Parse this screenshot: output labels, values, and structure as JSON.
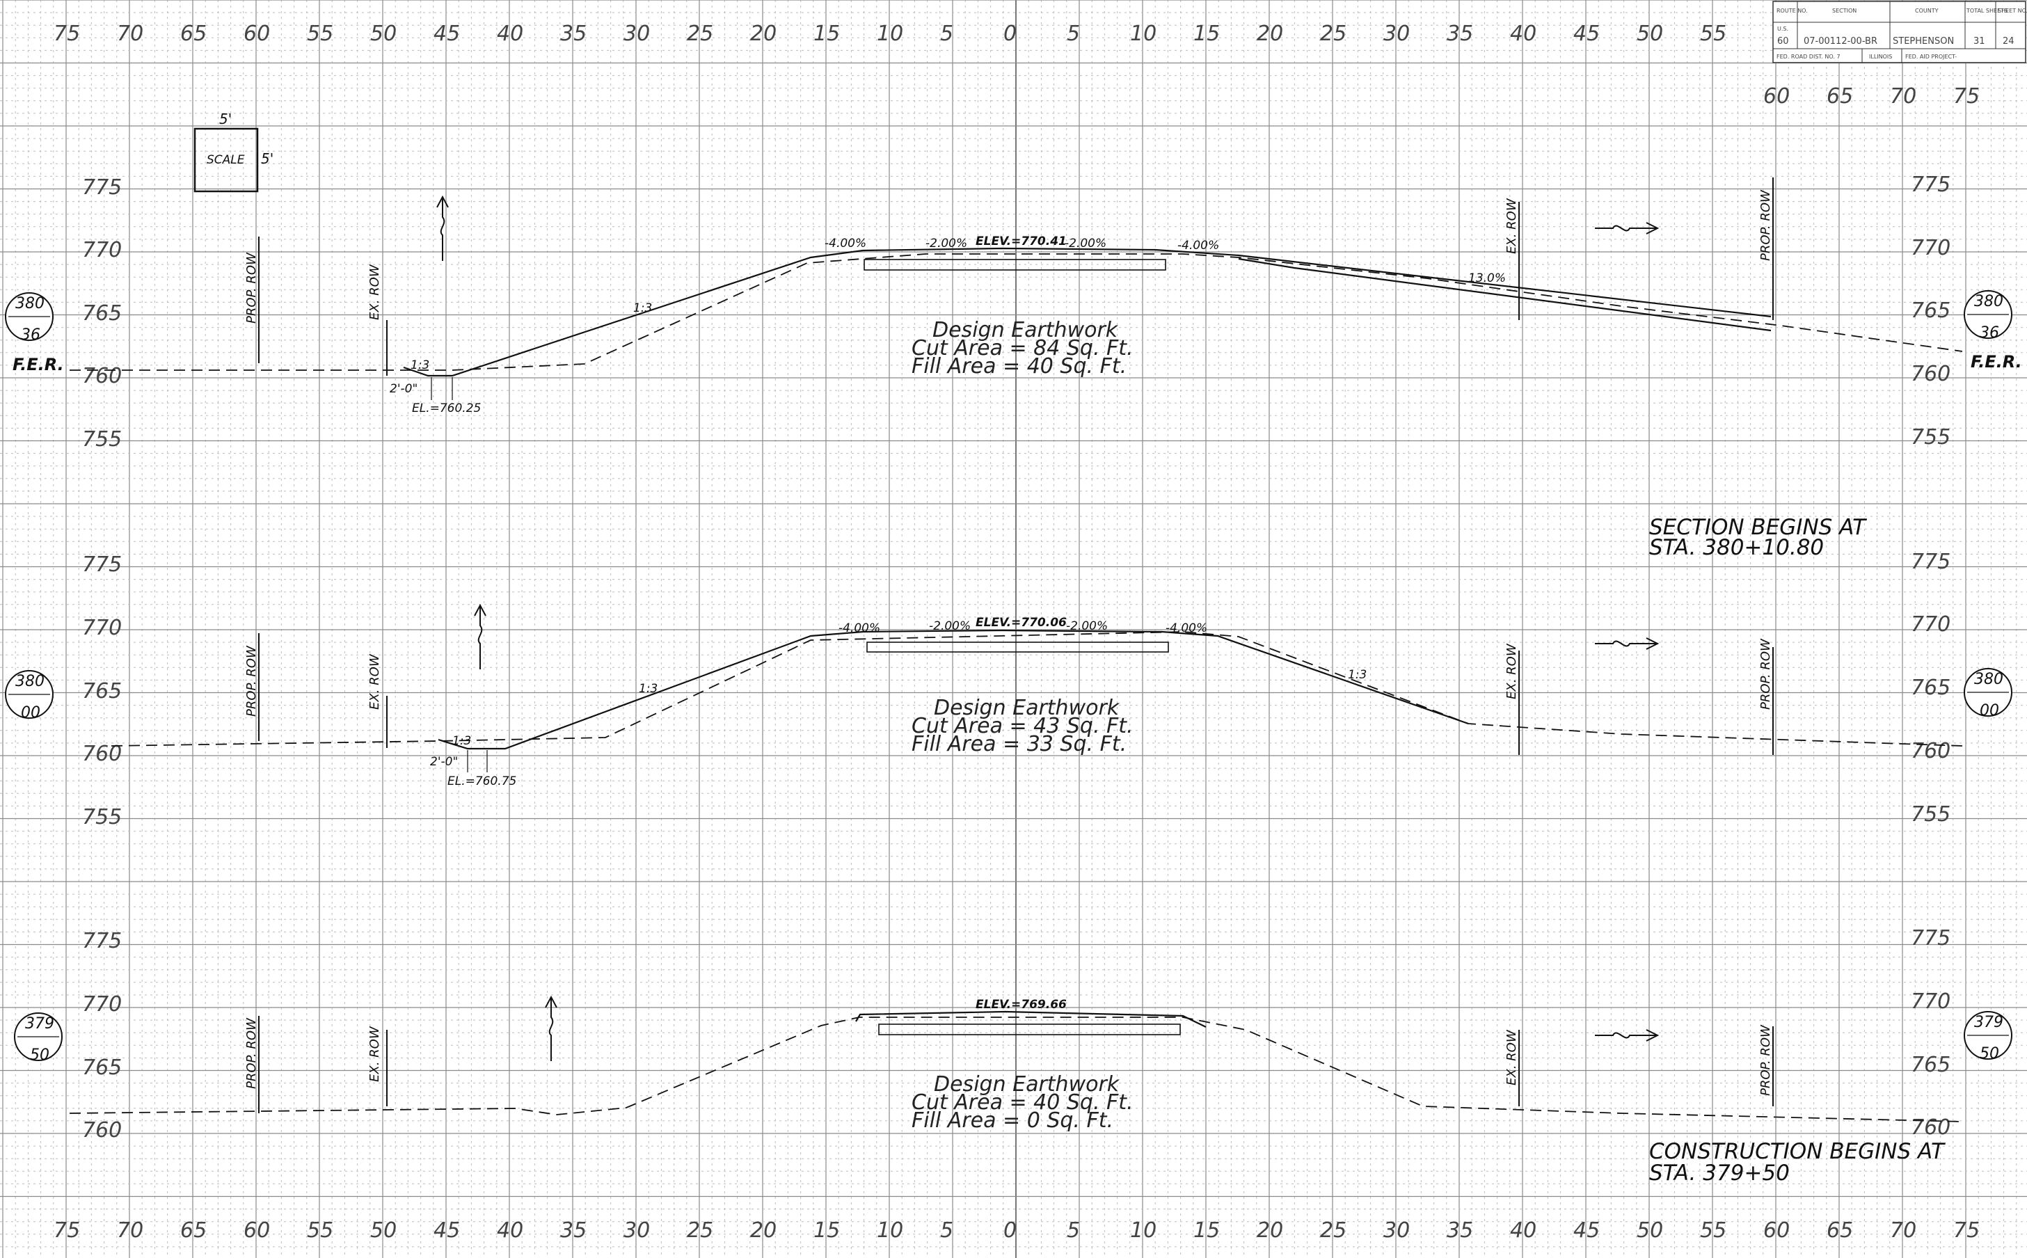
{
  "title_block": {
    "headers": [
      "ROUTE NO.",
      "SECTION",
      "COUNTY",
      "TOTAL SHEETS",
      "SHEET NO."
    ],
    "route_prefix": "U.S.",
    "route": "60",
    "section": "07-00112-00-BR",
    "county": "STEPHENSON",
    "total_sheets": "31",
    "sheet_no": "24",
    "fed_road_dist": "FED. ROAD DIST. NO. 7",
    "state": "ILLINOIS",
    "fed_aid_project": "FED. AID PROJECT-"
  },
  "offset_labels_top": [
    "75",
    "70",
    "65",
    "60",
    "55",
    "50",
    "45",
    "40",
    "35",
    "30",
    "25",
    "20",
    "15",
    "10",
    "5",
    "0",
    "5",
    "10",
    "15",
    "20",
    "25",
    "30",
    "35",
    "40",
    "45",
    "50",
    "55"
  ],
  "offset_labels_top_right": [
    "60",
    "65",
    "70",
    "75"
  ],
  "offset_labels_bottom": [
    "75",
    "70",
    "65",
    "60",
    "55",
    "50",
    "45",
    "40",
    "35",
    "30",
    "25",
    "20",
    "15",
    "10",
    "5",
    "0",
    "5",
    "10",
    "15",
    "20",
    "25",
    "30",
    "35",
    "40",
    "45",
    "50",
    "55",
    "60",
    "65",
    "70",
    "75"
  ],
  "scale_box": {
    "top": "5'",
    "center": "SCALE",
    "side": "5'"
  },
  "labels": {
    "prop_row": "PROP. ROW",
    "ex_row": "EX. ROW",
    "fer": "F.E.R.",
    "slope_13": "1:3",
    "design_earthwork": "Design Earthwork"
  },
  "sections": [
    {
      "station_top": "380",
      "station_bottom": "36",
      "elevations_left": [
        "775",
        "770",
        "765",
        "760",
        "755"
      ],
      "elevations_right": [
        "775",
        "770",
        "765",
        "760",
        "755"
      ],
      "elev_label": "ELEV.=770.41",
      "slopes": [
        "-4.00%",
        "-2.00%",
        "-2.00%",
        "-4.00%"
      ],
      "right_slope": "13.0%",
      "ditch_width": "2'-0\"",
      "ditch_elev": "EL.=760.25",
      "cut_area": "Cut Area = 84 Sq. Ft.",
      "fill_area": "Fill Area = 40 Sq. Ft."
    },
    {
      "station_top": "380",
      "station_bottom": "00",
      "elevations_left": [
        "775",
        "770",
        "765",
        "760",
        "755"
      ],
      "elevations_right": [
        "775",
        "770",
        "765",
        "760",
        "755"
      ],
      "elev_label": "ELEV.=770.06",
      "slopes": [
        "-4.00%",
        "-2.00%",
        "-2.00%",
        "-4.00%"
      ],
      "ditch_width": "2'-0\"",
      "ditch_elev": "EL.=760.75",
      "cut_area": "Cut Area = 43 Sq. Ft.",
      "fill_area": "Fill Area = 33 Sq. Ft."
    },
    {
      "station_top": "379",
      "station_bottom": "50",
      "elevations_left": [
        "775",
        "770",
        "765",
        "760"
      ],
      "elevations_right": [
        "775",
        "770",
        "765",
        "760"
      ],
      "elev_label": "ELEV.=769.66",
      "cut_area": "Cut Area = 40 Sq. Ft.",
      "fill_area": "Fill Area = 0 Sq. Ft."
    }
  ],
  "notes": {
    "section_begins_1": "SECTION BEGINS AT",
    "section_begins_2": "STA. 380+10.80",
    "construction_begins_1": "CONSTRUCTION BEGINS AT",
    "construction_begins_2": "STA. 379+50"
  }
}
